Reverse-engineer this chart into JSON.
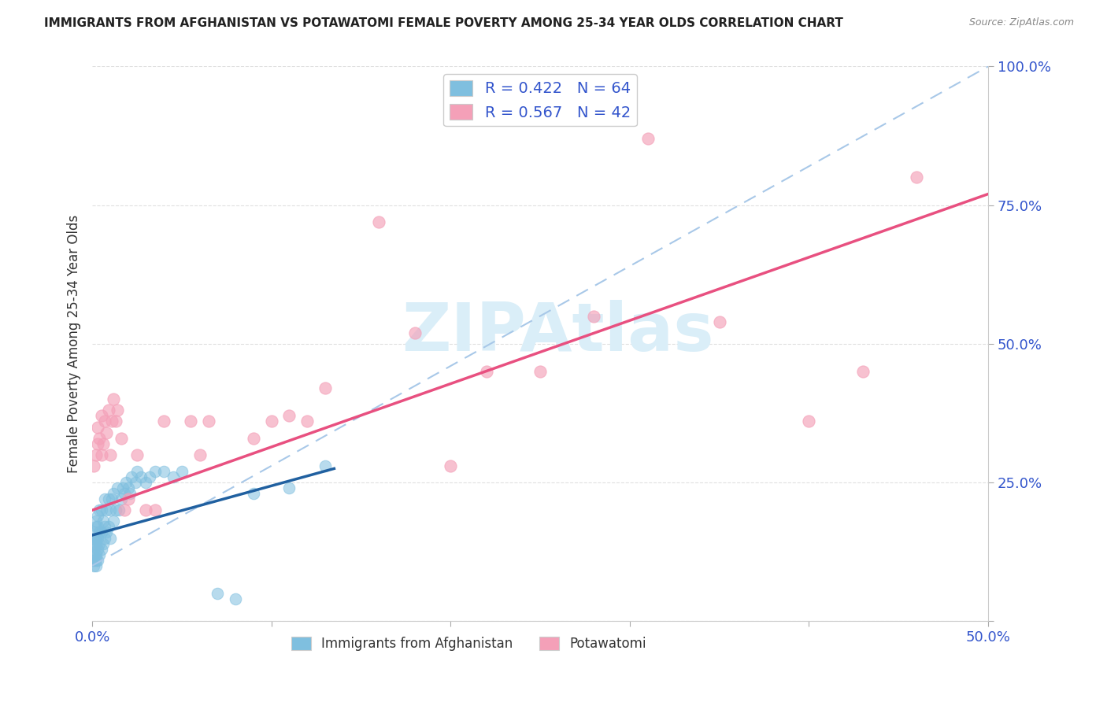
{
  "title": "IMMIGRANTS FROM AFGHANISTAN VS POTAWATOMI FEMALE POVERTY AMONG 25-34 YEAR OLDS CORRELATION CHART",
  "source": "Source: ZipAtlas.com",
  "ylabel": "Female Poverty Among 25-34 Year Olds",
  "xlim": [
    0,
    0.5
  ],
  "ylim": [
    0,
    1.0
  ],
  "xtick_positions": [
    0.0,
    0.1,
    0.2,
    0.3,
    0.4,
    0.5
  ],
  "xticklabels": [
    "0.0%",
    "",
    "",
    "",
    "",
    "50.0%"
  ],
  "ytick_positions": [
    0.0,
    0.25,
    0.5,
    0.75,
    1.0
  ],
  "yticklabels": [
    "",
    "25.0%",
    "50.0%",
    "75.0%",
    "100.0%"
  ],
  "legend_r1": "R = 0.422",
  "legend_n1": "N = 64",
  "legend_r2": "R = 0.567",
  "legend_n2": "N = 42",
  "color_blue": "#7fbfdf",
  "color_pink": "#f4a0b8",
  "color_blue_line": "#2060a0",
  "color_pink_line": "#e85080",
  "color_dashed": "#a8c8e8",
  "watermark": "ZIPAtlas",
  "watermark_color": "#daeef8",
  "background_color": "#ffffff",
  "title_color": "#222222",
  "axis_label_color": "#3355cc",
  "grid_color": "#dddddd",
  "blue_scatter_x": [
    0.001,
    0.001,
    0.001,
    0.001,
    0.001,
    0.001,
    0.001,
    0.002,
    0.002,
    0.002,
    0.002,
    0.002,
    0.002,
    0.002,
    0.003,
    0.003,
    0.003,
    0.003,
    0.003,
    0.004,
    0.004,
    0.004,
    0.004,
    0.005,
    0.005,
    0.005,
    0.006,
    0.006,
    0.007,
    0.007,
    0.007,
    0.008,
    0.008,
    0.009,
    0.009,
    0.01,
    0.01,
    0.011,
    0.012,
    0.012,
    0.013,
    0.014,
    0.015,
    0.016,
    0.017,
    0.018,
    0.019,
    0.02,
    0.021,
    0.022,
    0.024,
    0.025,
    0.027,
    0.03,
    0.032,
    0.035,
    0.04,
    0.045,
    0.05,
    0.07,
    0.08,
    0.09,
    0.11,
    0.13
  ],
  "blue_scatter_y": [
    0.1,
    0.11,
    0.12,
    0.13,
    0.14,
    0.15,
    0.16,
    0.1,
    0.11,
    0.12,
    0.14,
    0.15,
    0.17,
    0.18,
    0.11,
    0.13,
    0.15,
    0.17,
    0.19,
    0.12,
    0.14,
    0.16,
    0.2,
    0.13,
    0.16,
    0.2,
    0.14,
    0.18,
    0.15,
    0.17,
    0.22,
    0.16,
    0.2,
    0.17,
    0.22,
    0.15,
    0.2,
    0.22,
    0.18,
    0.23,
    0.2,
    0.24,
    0.2,
    0.22,
    0.24,
    0.23,
    0.25,
    0.24,
    0.23,
    0.26,
    0.25,
    0.27,
    0.26,
    0.25,
    0.26,
    0.27,
    0.27,
    0.26,
    0.27,
    0.05,
    0.04,
    0.23,
    0.24,
    0.28
  ],
  "pink_scatter_x": [
    0.001,
    0.002,
    0.003,
    0.003,
    0.004,
    0.005,
    0.005,
    0.006,
    0.007,
    0.008,
    0.009,
    0.01,
    0.011,
    0.012,
    0.013,
    0.014,
    0.016,
    0.018,
    0.02,
    0.025,
    0.03,
    0.035,
    0.04,
    0.055,
    0.06,
    0.065,
    0.09,
    0.1,
    0.11,
    0.12,
    0.13,
    0.16,
    0.18,
    0.2,
    0.22,
    0.25,
    0.28,
    0.31,
    0.35,
    0.4,
    0.43,
    0.46
  ],
  "pink_scatter_y": [
    0.28,
    0.3,
    0.32,
    0.35,
    0.33,
    0.3,
    0.37,
    0.32,
    0.36,
    0.34,
    0.38,
    0.3,
    0.36,
    0.4,
    0.36,
    0.38,
    0.33,
    0.2,
    0.22,
    0.3,
    0.2,
    0.2,
    0.36,
    0.36,
    0.3,
    0.36,
    0.33,
    0.36,
    0.37,
    0.36,
    0.42,
    0.72,
    0.52,
    0.28,
    0.45,
    0.45,
    0.55,
    0.87,
    0.54,
    0.36,
    0.45,
    0.8
  ],
  "blue_line_x0": 0.0,
  "blue_line_x1": 0.135,
  "blue_line_y0": 0.155,
  "blue_line_y1": 0.275,
  "dashed_line_x0": 0.0,
  "dashed_line_x1": 0.5,
  "dashed_line_y0": 0.1,
  "dashed_line_y1": 1.0,
  "pink_line_x0": 0.0,
  "pink_line_x1": 0.5,
  "pink_line_y0": 0.2,
  "pink_line_y1": 0.77
}
